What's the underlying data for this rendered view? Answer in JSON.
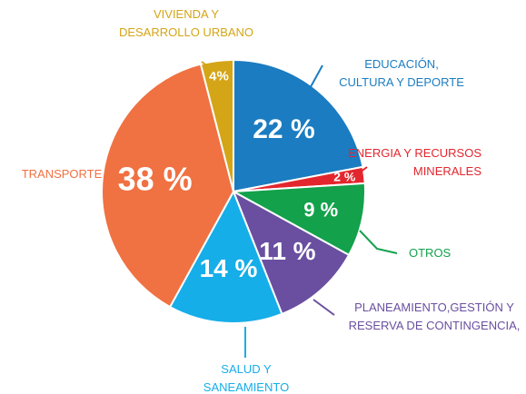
{
  "chart_data": {
    "type": "pie",
    "categories": [
      "EDUCACIÓN,\nCULTURA Y DEPORTE",
      "ENERGIA Y RECURSOS\nMINERALES",
      "OTROS",
      "PLANEAMIENTO,GESTIÓN Y\nRESERVA DE CONTINGENCIA,",
      "SALUD Y\nSANEAMIENTO",
      "TRANSPORTE",
      "VIVIENDA Y\nDESARROLLO URBANO"
    ],
    "values": [
      22,
      2,
      9,
      11,
      14,
      38,
      4
    ],
    "value_labels": [
      "22 %",
      "2 %",
      "9 %",
      "11 %",
      "14 %",
      "38 %",
      "4%"
    ],
    "colors": [
      "#1b7cc1",
      "#e3262e",
      "#13a14b",
      "#6a4fa0",
      "#16aee8",
      "#f07142",
      "#d4a516"
    ]
  }
}
